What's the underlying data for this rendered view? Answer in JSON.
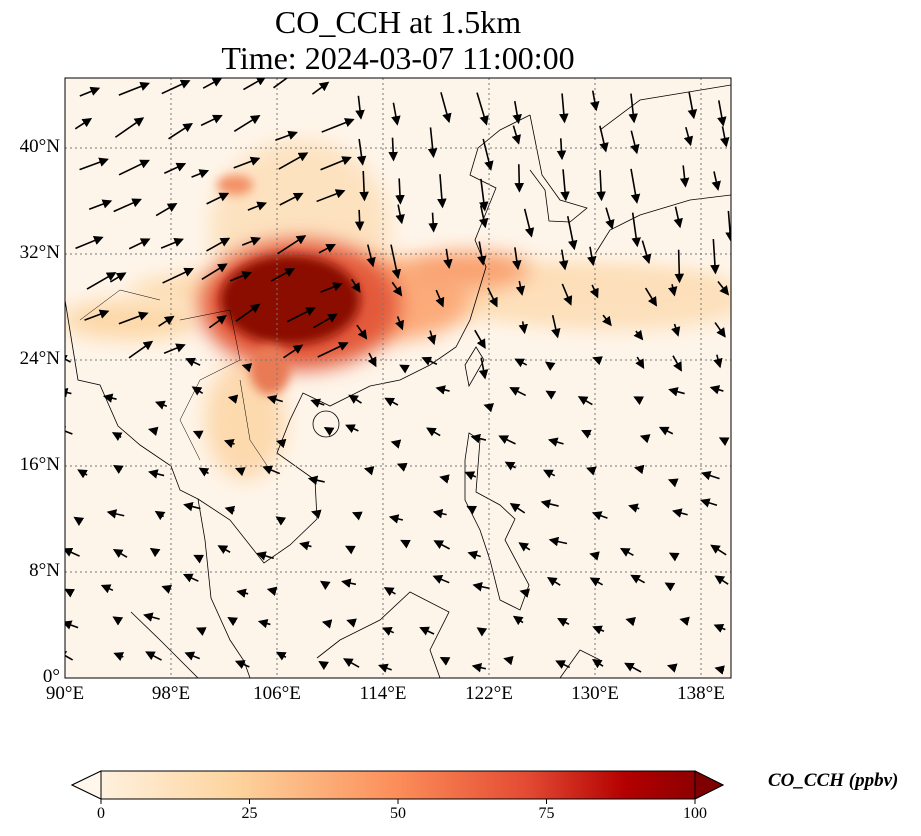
{
  "title": {
    "line1": "CO_CCH at 1.5km",
    "line2": "Time: 2024-03-07 11:00:00"
  },
  "map": {
    "lon_range": [
      90,
      140
    ],
    "lat_range": [
      0,
      45
    ],
    "x_ticks": [
      {
        "value": 90,
        "label": "90°E"
      },
      {
        "value": 98,
        "label": "98°E"
      },
      {
        "value": 106,
        "label": "106°E"
      },
      {
        "value": 114,
        "label": "114°E"
      },
      {
        "value": 122,
        "label": "122°E"
      },
      {
        "value": 130,
        "label": "130°E"
      },
      {
        "value": 138,
        "label": "138°E"
      }
    ],
    "y_ticks": [
      {
        "value": 0,
        "label": "0°"
      },
      {
        "value": 8,
        "label": "8°N"
      },
      {
        "value": 16,
        "label": "16°N"
      },
      {
        "value": 24,
        "label": "24°N"
      },
      {
        "value": 32,
        "label": "32°N"
      },
      {
        "value": 40,
        "label": "40°N"
      }
    ]
  },
  "colorbar": {
    "label": "CO_CCH (ppbv)",
    "min": 0,
    "max": 100,
    "ticks": [
      {
        "value": 0,
        "label": "0"
      },
      {
        "value": 25,
        "label": "25"
      },
      {
        "value": 50,
        "label": "50"
      },
      {
        "value": 75,
        "label": "75"
      },
      {
        "value": 100,
        "label": "100"
      }
    ],
    "colors": [
      "#fff7ec",
      "#fdd49e",
      "#fc8d59",
      "#d7301f",
      "#b30000",
      "#7f0000"
    ]
  }
}
